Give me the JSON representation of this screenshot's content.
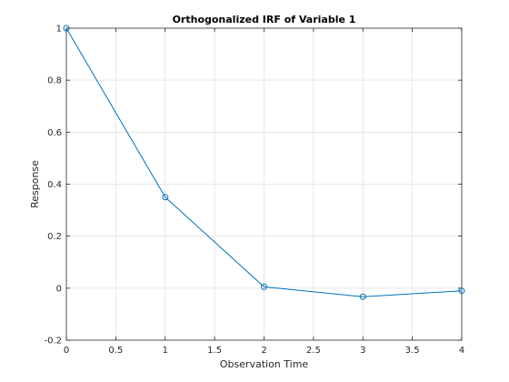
{
  "chart_data": {
    "type": "line",
    "title": "Orthogonalized IRF of Variable 1",
    "xlabel": "Observation Time",
    "ylabel": "Response",
    "xlim": [
      0,
      4
    ],
    "ylim": [
      -0.2,
      1
    ],
    "xticks": [
      0,
      0.5,
      1,
      1.5,
      2,
      2.5,
      3,
      3.5,
      4
    ],
    "xtick_labels": [
      "0",
      "0.5",
      "1",
      "1.5",
      "2",
      "2.5",
      "3",
      "3.5",
      "4"
    ],
    "yticks": [
      -0.2,
      0,
      0.2,
      0.4,
      0.6,
      0.8,
      1
    ],
    "ytick_labels": [
      "-0.2",
      "0",
      "0.2",
      "0.4",
      "0.6",
      "0.8",
      "1"
    ],
    "grid": true,
    "marker": "circle",
    "series": [
      {
        "x": [
          0,
          1,
          2,
          3,
          4
        ],
        "values": [
          1.0,
          0.35,
          0.005,
          -0.033,
          -0.01
        ]
      }
    ],
    "colors": {
      "line": "#0072BD",
      "grid": "#e6e6e6",
      "axis": "#262626"
    }
  }
}
